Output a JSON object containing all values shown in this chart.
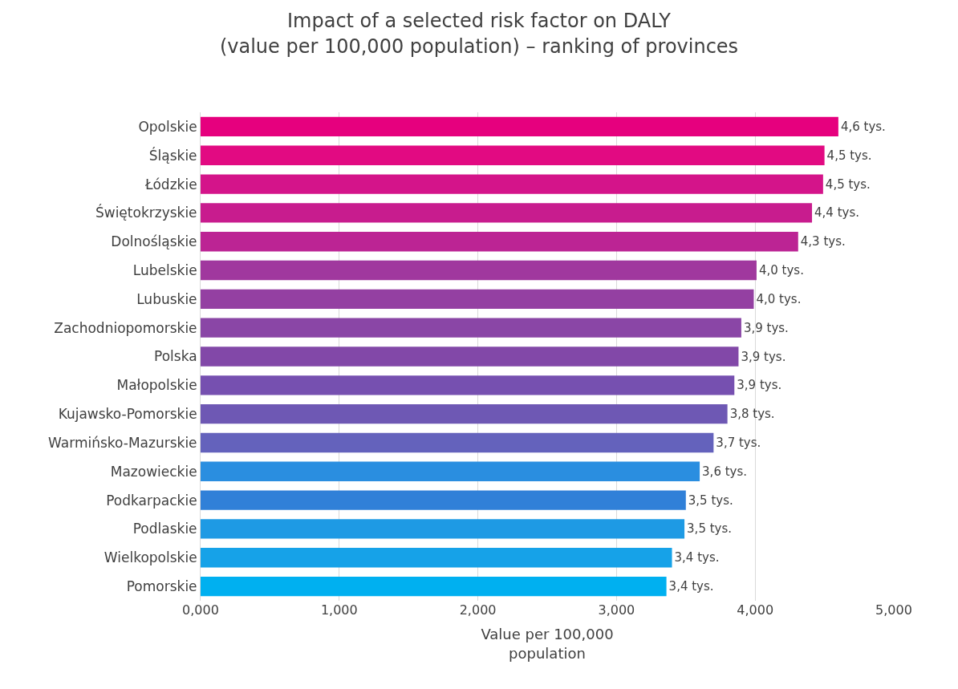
{
  "chart_data": {
    "type": "bar",
    "orientation": "horizontal",
    "title": "Impact of a selected risk factor on DALY\n(value per 100,000 population) – ranking of provinces",
    "xlabel": "Value per 100,000 population",
    "categories": [
      "Opolskie",
      "Śląskie",
      "Łódzkie",
      "Świętokrzyskie",
      "Dolnośląskie",
      "Lubelskie",
      "Lubuskie",
      "Zachodniopomorskie",
      "Polska",
      "Małopolskie",
      "Kujawsko-Pomorskie",
      "Warmińsko-Mazurskie",
      "Mazowieckie",
      "Podkarpackie",
      "Podlaskie",
      "Wielkopolskie",
      "Pomorskie"
    ],
    "values": [
      4.6,
      4.5,
      4.49,
      4.41,
      4.31,
      4.01,
      3.99,
      3.9,
      3.88,
      3.85,
      3.8,
      3.7,
      3.6,
      3.5,
      3.49,
      3.4,
      3.36
    ],
    "value_labels": [
      "4,6 tys.",
      "4,5 tys.",
      "4,5 tys.",
      "4,4 tys.",
      "4,3 tys.",
      "4,0 tys.",
      "4,0 tys.",
      "3,9 tys.",
      "3,9 tys.",
      "3,9 tys.",
      "3,8 tys.",
      "3,7 tys.",
      "3,6 tys.",
      "3,5 tys.",
      "3,5 tys.",
      "3,4 tys.",
      "3,4 tys."
    ],
    "colors": [
      "#e6007e",
      "#e20a82",
      "#d4148a",
      "#c81c8e",
      "#bc2494",
      "#a0389e",
      "#9440a2",
      "#8a46a6",
      "#8248a8",
      "#7650b0",
      "#6e58b4",
      "#6462bc",
      "#2a8ee0",
      "#3080d8",
      "#1e9ae4",
      "#16a2e8",
      "#00b0f0"
    ],
    "xlim": [
      0,
      5
    ],
    "xticks": [
      {
        "value": 0,
        "label": "0,000"
      },
      {
        "value": 1,
        "label": "1,000"
      },
      {
        "value": 2,
        "label": "2,000"
      },
      {
        "value": 3,
        "label": "3,000"
      },
      {
        "value": 4,
        "label": "4,000"
      },
      {
        "value": 5,
        "label": "5,000"
      }
    ],
    "grid": "x",
    "legend": false
  }
}
